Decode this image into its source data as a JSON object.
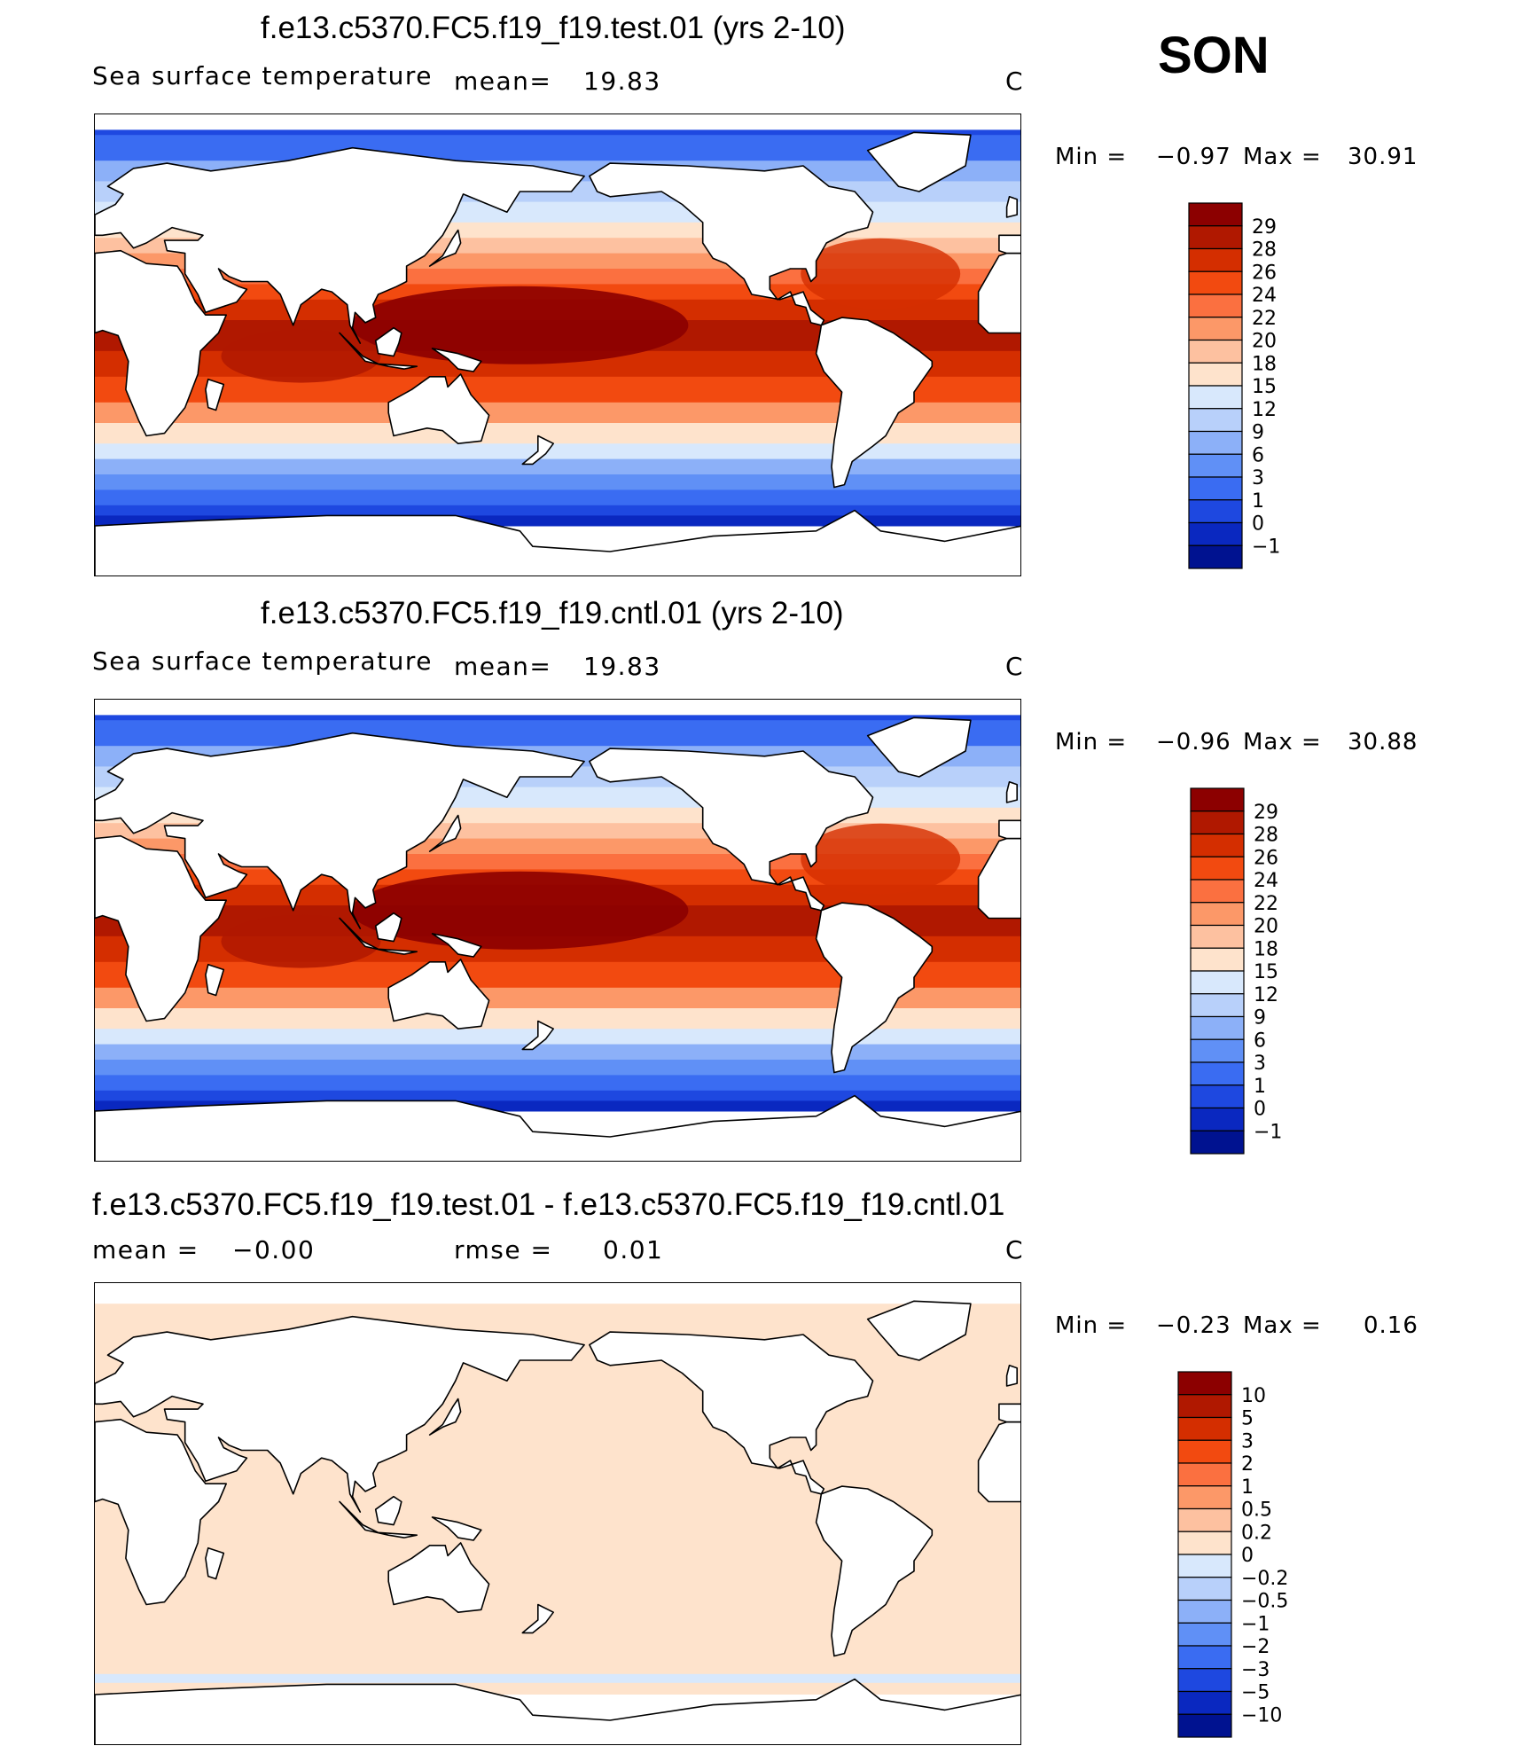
{
  "season": "SON",
  "panels": [
    {
      "title": "f.e13.c5370.FC5.f19_f19.test.01 (yrs 2-10)",
      "left_label": "Sea surface temperature",
      "mean_label": "mean=",
      "mean_value": "19.83",
      "rmse_label": "",
      "rmse_value": "",
      "units": "C",
      "min_label": "Min =",
      "min_value": "−0.97",
      "max_label": "Max =",
      "max_value": "30.91"
    },
    {
      "title": "f.e13.c5370.FC5.f19_f19.cntl.01 (yrs 2-10)",
      "left_label": "Sea surface temperature",
      "mean_label": "mean=",
      "mean_value": "19.83",
      "rmse_label": "",
      "rmse_value": "",
      "units": "C",
      "min_label": "Min =",
      "min_value": "−0.96",
      "max_label": "Max =",
      "max_value": "30.88"
    },
    {
      "title": "f.e13.c5370.FC5.f19_f19.test.01 - f.e13.c5370.FC5.f19_f19.cntl.01",
      "left_label": "mean =",
      "mean_label": "",
      "mean_value": "−0.00",
      "rmse_label": "rmse =",
      "rmse_value": "0.01",
      "units": "C",
      "min_label": "Min =",
      "min_value": "−0.23",
      "max_label": "Max =",
      "max_value": "0.16"
    }
  ],
  "chart_data": [
    {
      "type": "heatmap",
      "title": "f.e13.c5370.FC5.f19_f19.test.01 (yrs 2-10)",
      "variable": "Sea surface temperature",
      "units": "C",
      "mean": 19.83,
      "min": -0.97,
      "max": 30.91,
      "season": "SON",
      "projection": "cylindrical equidistant, Pacific-centered, 0E-360E",
      "colorbar": {
        "levels": [
          "29",
          "28",
          "26",
          "24",
          "22",
          "20",
          "18",
          "15",
          "12",
          "9",
          "6",
          "3",
          "1",
          "0",
          "−1"
        ],
        "colors": [
          "#8c0000",
          "#b01800",
          "#d42e00",
          "#f24a10",
          "#fb7040",
          "#fc9868",
          "#fdc1a0",
          "#fee3cc",
          "#d8e8fc",
          "#b8d0fa",
          "#8cb0f8",
          "#6090f6",
          "#3a6cf2",
          "#1e48e0",
          "#0a28c0",
          "#001290"
        ]
      }
    },
    {
      "type": "heatmap",
      "title": "f.e13.c5370.FC5.f19_f19.cntl.01 (yrs 2-10)",
      "variable": "Sea surface temperature",
      "units": "C",
      "mean": 19.83,
      "min": -0.96,
      "max": 30.88,
      "season": "SON",
      "projection": "cylindrical equidistant, Pacific-centered, 0E-360E",
      "colorbar": {
        "levels": [
          "29",
          "28",
          "26",
          "24",
          "22",
          "20",
          "18",
          "15",
          "12",
          "9",
          "6",
          "3",
          "1",
          "0",
          "−1"
        ],
        "colors": [
          "#8c0000",
          "#b01800",
          "#d42e00",
          "#f24a10",
          "#fb7040",
          "#fc9868",
          "#fdc1a0",
          "#fee3cc",
          "#d8e8fc",
          "#b8d0fa",
          "#8cb0f8",
          "#6090f6",
          "#3a6cf2",
          "#1e48e0",
          "#0a28c0",
          "#001290"
        ]
      }
    },
    {
      "type": "heatmap",
      "title": "f.e13.c5370.FC5.f19_f19.test.01 - f.e13.c5370.FC5.f19_f19.cntl.01",
      "units": "C",
      "mean": -0.0,
      "rmse": 0.01,
      "min": -0.23,
      "max": 0.16,
      "season": "SON",
      "projection": "cylindrical equidistant, Pacific-centered, 0E-360E",
      "colorbar": {
        "levels": [
          "10",
          "5",
          "3",
          "2",
          "1",
          "0.5",
          "0.2",
          "0",
          "−0.2",
          "−0.5",
          "−1",
          "−2",
          "−3",
          "−5",
          "−10"
        ],
        "colors": [
          "#8c0000",
          "#b01800",
          "#d42e00",
          "#f24a10",
          "#fb7040",
          "#fc9868",
          "#fdc1a0",
          "#fee3cc",
          "#d8e8fc",
          "#b8d0fa",
          "#8cb0f8",
          "#6090f6",
          "#3a6cf2",
          "#1e48e0",
          "#0a28c0",
          "#001290"
        ]
      }
    }
  ]
}
